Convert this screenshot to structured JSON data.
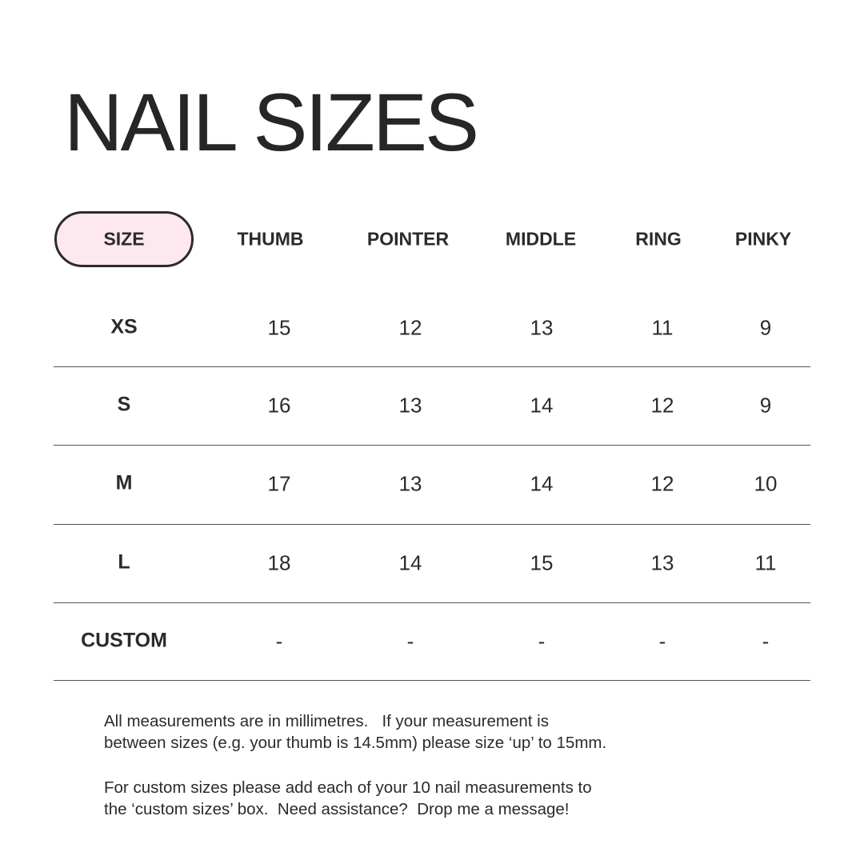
{
  "title": "NAIL SIZES",
  "colors": {
    "pill_fill": "#fde8ef",
    "text": "#2b2b2b"
  },
  "table": {
    "headers": [
      "SIZE",
      "THUMB",
      "POINTER",
      "MIDDLE",
      "RING",
      "PINKY"
    ],
    "rows": [
      {
        "size": "XS",
        "values": [
          "15",
          "12",
          "13",
          "11",
          "9"
        ]
      },
      {
        "size": "S",
        "values": [
          "16",
          "13",
          "14",
          "12",
          "9"
        ]
      },
      {
        "size": "M",
        "values": [
          "17",
          "13",
          "14",
          "12",
          "10"
        ]
      },
      {
        "size": "L",
        "values": [
          "18",
          "14",
          "15",
          "13",
          "11"
        ]
      },
      {
        "size": "CUSTOM",
        "values": [
          "-",
          "-",
          "-",
          "-",
          "-"
        ]
      }
    ]
  },
  "notes": {
    "paragraph1": [
      "All measurements are in millimetres.   If your measurement is",
      "between sizes (e.g. your thumb is 14.5mm) please size ‘up’ to 15mm."
    ],
    "paragraph2": [
      "For custom sizes please add each of your 10 nail measurements to",
      "the ‘custom sizes’ box.  Need assistance?  Drop me a message!"
    ]
  }
}
